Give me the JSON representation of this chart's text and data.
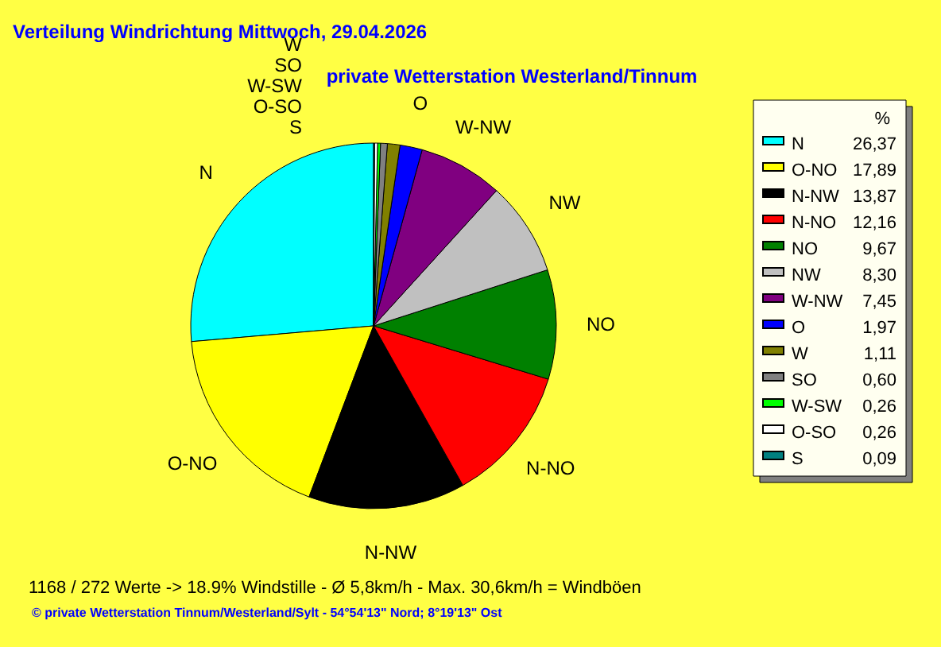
{
  "chart_data": {
    "type": "pie",
    "title": "Verteilung Windrichtung   Mittwoch, 29.04.2026",
    "subtitle": "private Wetterstation Westerland/Tinnum",
    "legend_title": "%",
    "legend": "right",
    "categories": [
      "N",
      "O-NO",
      "N-NW",
      "N-NO",
      "NO",
      "NW",
      "W-NW",
      "O",
      "W",
      "SO",
      "W-SW",
      "O-SO",
      "S"
    ],
    "values": [
      26.37,
      17.89,
      13.87,
      12.16,
      9.67,
      8.3,
      7.45,
      1.97,
      1.11,
      0.6,
      0.26,
      0.26,
      0.09
    ],
    "value_labels": [
      "26,37",
      "17,89",
      "13,87",
      "12,16",
      "9,67",
      "8,30",
      "7,45",
      "1,97",
      "1,11",
      "0,60",
      "0,26",
      "0,26",
      "0,09"
    ],
    "colors": [
      "#00ffff",
      "#ffff00",
      "#000000",
      "#ff0000",
      "#008000",
      "#c0c0c0",
      "#800080",
      "#0000ff",
      "#808000",
      "#808080",
      "#00ff00",
      "#ffffff",
      "#008080"
    ],
    "annotations": [
      "1168 / 272 Werte  -> 18.9% Windstille   -   Ø 5,8km/h  -  Max. 30,6km/h = Windböen",
      "© private Wetterstation Tinnum/Westerland/Sylt  -  54°54'13\" Nord; 8°19'13\" Ost"
    ]
  }
}
